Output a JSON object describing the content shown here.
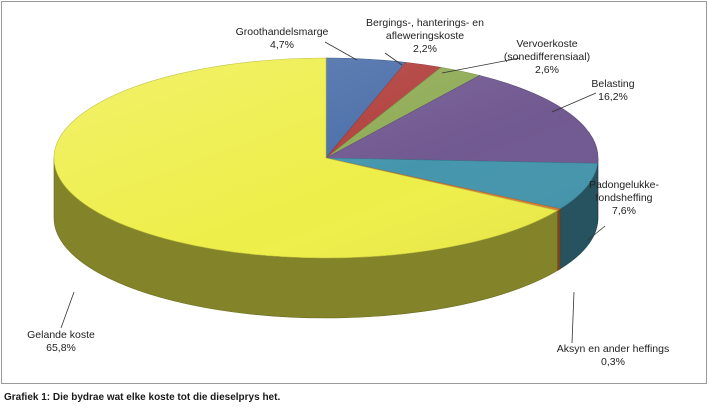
{
  "caption": "Grafiek 1: Die bydrae wat elke koste tot die dieselprys het.",
  "chart_data": {
    "type": "pie",
    "style": "3d",
    "slices": [
      {
        "name": "Groothandelsmarge",
        "value": 4.7,
        "label": "4,7%",
        "color": "#4a6ea9"
      },
      {
        "name": "Bergings-, hanterings- en afleweringskoste",
        "value": 2.2,
        "label": "2,2%",
        "color": "#b13f3c"
      },
      {
        "name": "Vervoerkoste (sonedifferensiaal)",
        "value": 2.6,
        "label": "2,6%",
        "color": "#8fab55"
      },
      {
        "name": "Belasting",
        "value": 16.2,
        "label": "16,2%",
        "color": "#715991"
      },
      {
        "name": "Padongelukke-fondsheffing",
        "value": 7.6,
        "label": "7,6%",
        "color": "#4596ad"
      },
      {
        "name": "Aksyn en ander heffings",
        "value": 0.3,
        "label": "0,3%",
        "color": "#e07f3a"
      },
      {
        "name": "Gelande koste",
        "value": 65.8,
        "label": "65,8%",
        "color": "#eeee4a"
      }
    ],
    "labels": [
      {
        "lines": [
          "Groothandelsmarge",
          "4,7%"
        ]
      },
      {
        "lines": [
          "Bergings-, hanterings- en",
          "afleweringskoste",
          "2,2%"
        ]
      },
      {
        "lines": [
          "Vervoerkoste",
          "(sonedifferensiaal)",
          "2,6%"
        ]
      },
      {
        "lines": [
          "Belasting",
          "16,2%"
        ]
      },
      {
        "lines": [
          "Padongelukke-",
          "fondsheffing",
          "7,6%"
        ]
      },
      {
        "lines": [
          "Aksyn en ander heffings",
          "0,3%"
        ]
      },
      {
        "lines": [
          "Gelande koste",
          "65,8%"
        ]
      }
    ]
  }
}
